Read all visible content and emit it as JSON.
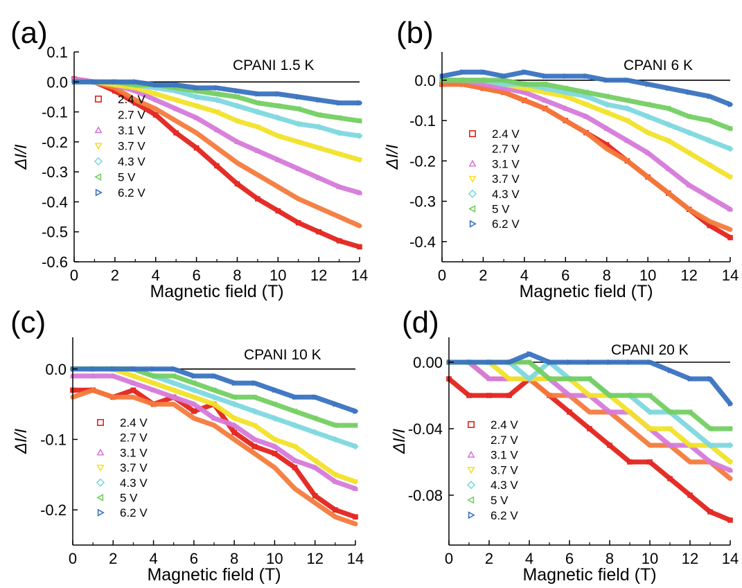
{
  "legend_labels": [
    "2.4 V",
    "2.7 V",
    "3.1 V",
    "3.7 V",
    "4.3 V",
    "5 V",
    "6.2 V"
  ],
  "series_colors": [
    "#e3231c",
    "#f47a3c",
    "#d67ad9",
    "#f2e12a",
    "#7ed8df",
    "#74cf62",
    "#3a73c0"
  ],
  "series_markers": [
    "square",
    "circle",
    "triangle-up",
    "triangle-down",
    "diamond",
    "triangle-left",
    "triangle-right"
  ],
  "chart_data": [
    {
      "type": "scatter",
      "panel_label": "(a)",
      "annotation": "CPANI  1.5 K",
      "xlabel": "Magnetic field (T)",
      "ylabel": "ΔI/I",
      "xlim": [
        0,
        14
      ],
      "ylim": [
        -0.6,
        0.1
      ],
      "xticks": [
        "0",
        "2",
        "4",
        "6",
        "8",
        "10",
        "12",
        "14"
      ],
      "yticks": [
        "-0.6",
        "-0.5",
        "-0.4",
        "-0.3",
        "-0.2",
        "-0.1",
        "0.0",
        "0.1"
      ],
      "legend_position": "left",
      "x": [
        0,
        1,
        2,
        3,
        4,
        5,
        6,
        7,
        8,
        9,
        10,
        11,
        12,
        13,
        14
      ],
      "series": [
        {
          "name": "2.4 V",
          "values": [
            0.01,
            0.0,
            -0.03,
            -0.07,
            -0.11,
            -0.17,
            -0.22,
            -0.28,
            -0.34,
            -0.39,
            -0.43,
            -0.47,
            -0.5,
            -0.53,
            -0.55
          ]
        },
        {
          "name": "2.7 V",
          "values": [
            0.01,
            0.0,
            -0.02,
            -0.06,
            -0.09,
            -0.13,
            -0.17,
            -0.22,
            -0.27,
            -0.31,
            -0.35,
            -0.39,
            -0.42,
            -0.45,
            -0.48
          ]
        },
        {
          "name": "3.1 V",
          "values": [
            0.01,
            0.0,
            -0.01,
            -0.03,
            -0.06,
            -0.09,
            -0.12,
            -0.16,
            -0.2,
            -0.23,
            -0.26,
            -0.29,
            -0.32,
            -0.35,
            -0.37
          ]
        },
        {
          "name": "3.7 V",
          "values": [
            0.0,
            0.0,
            -0.01,
            -0.02,
            -0.04,
            -0.06,
            -0.08,
            -0.1,
            -0.13,
            -0.15,
            -0.18,
            -0.2,
            -0.22,
            -0.24,
            -0.26
          ]
        },
        {
          "name": "4.3 V",
          "values": [
            0.0,
            0.0,
            0.0,
            -0.01,
            -0.02,
            -0.03,
            -0.05,
            -0.06,
            -0.08,
            -0.1,
            -0.12,
            -0.14,
            -0.15,
            -0.17,
            -0.18
          ]
        },
        {
          "name": "5 V",
          "values": [
            0.0,
            0.0,
            0.0,
            -0.01,
            -0.01,
            -0.02,
            -0.03,
            -0.04,
            -0.05,
            -0.07,
            -0.08,
            -0.09,
            -0.11,
            -0.12,
            -0.13
          ]
        },
        {
          "name": "6.2 V",
          "values": [
            0.0,
            0.0,
            0.0,
            0.0,
            -0.01,
            -0.01,
            -0.02,
            -0.02,
            -0.03,
            -0.04,
            -0.04,
            -0.05,
            -0.06,
            -0.07,
            -0.07
          ]
        }
      ]
    },
    {
      "type": "scatter",
      "panel_label": "(b)",
      "annotation": "CPANI   6 K",
      "xlabel": "Magnetic field (T)",
      "ylabel": "ΔI/I",
      "xlim": [
        0,
        14
      ],
      "ylim": [
        -0.45,
        0.07
      ],
      "xticks": [
        "0",
        "2",
        "4",
        "6",
        "8",
        "10",
        "12",
        "14"
      ],
      "yticks": [
        "-0.4",
        "-0.3",
        "-0.2",
        "-0.1",
        "0.0"
      ],
      "legend_position": "left",
      "x": [
        0,
        1,
        2,
        3,
        4,
        5,
        6,
        7,
        8,
        9,
        10,
        11,
        12,
        13,
        14
      ],
      "series": [
        {
          "name": "2.4 V",
          "values": [
            -0.01,
            -0.01,
            -0.02,
            -0.03,
            -0.05,
            -0.07,
            -0.1,
            -0.13,
            -0.16,
            -0.2,
            -0.24,
            -0.28,
            -0.32,
            -0.36,
            -0.39
          ]
        },
        {
          "name": "2.7 V",
          "values": [
            -0.01,
            -0.01,
            -0.02,
            -0.03,
            -0.05,
            -0.07,
            -0.1,
            -0.13,
            -0.17,
            -0.2,
            -0.24,
            -0.28,
            -0.32,
            -0.35,
            -0.37
          ]
        },
        {
          "name": "3.1 V",
          "values": [
            0.0,
            0.0,
            -0.01,
            -0.02,
            -0.03,
            -0.05,
            -0.07,
            -0.09,
            -0.12,
            -0.15,
            -0.18,
            -0.22,
            -0.26,
            -0.29,
            -0.32
          ]
        },
        {
          "name": "3.7 V",
          "values": [
            0.0,
            0.0,
            0.0,
            -0.01,
            -0.02,
            -0.03,
            -0.04,
            -0.06,
            -0.08,
            -0.1,
            -0.13,
            -0.15,
            -0.18,
            -0.21,
            -0.24
          ]
        },
        {
          "name": "4.3 V",
          "values": [
            0.0,
            0.0,
            0.0,
            -0.01,
            -0.01,
            -0.02,
            -0.03,
            -0.04,
            -0.06,
            -0.07,
            -0.09,
            -0.11,
            -0.13,
            -0.15,
            -0.17
          ]
        },
        {
          "name": "5 V",
          "values": [
            0.0,
            0.0,
            0.0,
            0.0,
            -0.01,
            -0.01,
            -0.02,
            -0.03,
            -0.04,
            -0.05,
            -0.06,
            -0.07,
            -0.09,
            -0.1,
            -0.12
          ]
        },
        {
          "name": "6.2 V",
          "values": [
            0.01,
            0.02,
            0.02,
            0.01,
            0.02,
            0.01,
            0.01,
            0.01,
            0.0,
            0.0,
            -0.01,
            -0.02,
            -0.03,
            -0.04,
            -0.06
          ]
        }
      ]
    },
    {
      "type": "scatter",
      "panel_label": "(c)",
      "annotation": "CPANI  10 K",
      "xlabel": "Magnetic field (T)",
      "ylabel": "ΔI/I",
      "xlim": [
        0,
        14
      ],
      "ylim": [
        -0.25,
        0.045
      ],
      "xticks": [
        "0",
        "2",
        "4",
        "6",
        "8",
        "10",
        "12",
        "14"
      ],
      "yticks": [
        "-0.2",
        "-0.1",
        "0.0"
      ],
      "legend_position": "left",
      "x": [
        0,
        1,
        2,
        3,
        4,
        5,
        6,
        7,
        8,
        9,
        10,
        11,
        12,
        13,
        14
      ],
      "series": [
        {
          "name": "2.4 V",
          "values": [
            -0.03,
            -0.03,
            -0.04,
            -0.03,
            -0.05,
            -0.04,
            -0.06,
            -0.05,
            -0.09,
            -0.11,
            -0.12,
            -0.14,
            -0.18,
            -0.2,
            -0.21
          ]
        },
        {
          "name": "2.7 V",
          "values": [
            -0.04,
            -0.03,
            -0.04,
            -0.04,
            -0.05,
            -0.05,
            -0.07,
            -0.08,
            -0.1,
            -0.12,
            -0.14,
            -0.17,
            -0.19,
            -0.21,
            -0.22
          ]
        },
        {
          "name": "3.1 V",
          "values": [
            -0.01,
            -0.01,
            -0.01,
            -0.02,
            -0.03,
            -0.04,
            -0.05,
            -0.07,
            -0.08,
            -0.1,
            -0.11,
            -0.13,
            -0.14,
            -0.16,
            -0.17
          ]
        },
        {
          "name": "3.7 V",
          "values": [
            0.0,
            0.0,
            0.0,
            -0.01,
            -0.02,
            -0.03,
            -0.04,
            -0.05,
            -0.07,
            -0.08,
            -0.1,
            -0.11,
            -0.13,
            -0.15,
            -0.16
          ]
        },
        {
          "name": "4.3 V",
          "values": [
            0.0,
            0.0,
            0.0,
            0.0,
            -0.01,
            -0.02,
            -0.03,
            -0.04,
            -0.05,
            -0.06,
            -0.07,
            -0.08,
            -0.09,
            -0.1,
            -0.11
          ]
        },
        {
          "name": "5 V",
          "values": [
            0.0,
            0.0,
            0.0,
            0.0,
            -0.01,
            -0.01,
            -0.02,
            -0.03,
            -0.04,
            -0.04,
            -0.05,
            -0.06,
            -0.07,
            -0.08,
            -0.08
          ]
        },
        {
          "name": "6.2 V",
          "values": [
            0.0,
            0.0,
            0.0,
            0.0,
            0.0,
            0.0,
            -0.01,
            -0.01,
            -0.02,
            -0.02,
            -0.03,
            -0.04,
            -0.04,
            -0.05,
            -0.06
          ]
        }
      ]
    },
    {
      "type": "scatter",
      "panel_label": "(d)",
      "annotation": "CPANI   20 K",
      "xlabel": "Magnetic field (T)",
      "ylabel": "ΔI/I",
      "xlim": [
        0,
        14
      ],
      "ylim": [
        -0.11,
        0.015
      ],
      "xticks": [
        "0",
        "2",
        "4",
        "6",
        "8",
        "10",
        "12",
        "14"
      ],
      "yticks": [
        "-0.08",
        "-0.04",
        "0.00"
      ],
      "legend_position": "left",
      "x": [
        0,
        1,
        2,
        3,
        4,
        5,
        6,
        7,
        8,
        9,
        10,
        11,
        12,
        13,
        14
      ],
      "series": [
        {
          "name": "2.4 V",
          "values": [
            -0.01,
            -0.02,
            -0.02,
            -0.02,
            -0.01,
            -0.02,
            -0.03,
            -0.04,
            -0.05,
            -0.06,
            -0.06,
            -0.07,
            -0.08,
            -0.09,
            -0.095
          ]
        },
        {
          "name": "2.7 V",
          "values": [
            0.0,
            0.0,
            -0.01,
            -0.01,
            -0.01,
            -0.02,
            -0.02,
            -0.03,
            -0.03,
            -0.04,
            -0.05,
            -0.05,
            -0.06,
            -0.06,
            -0.07
          ]
        },
        {
          "name": "3.1 V",
          "values": [
            0.0,
            0.0,
            -0.01,
            -0.01,
            -0.01,
            -0.01,
            -0.02,
            -0.02,
            -0.03,
            -0.03,
            -0.04,
            -0.05,
            -0.05,
            -0.06,
            -0.065
          ]
        },
        {
          "name": "3.7 V",
          "values": [
            0.0,
            0.0,
            0.0,
            -0.01,
            -0.01,
            -0.01,
            -0.01,
            -0.02,
            -0.02,
            -0.03,
            -0.04,
            -0.04,
            -0.05,
            -0.05,
            -0.06
          ]
        },
        {
          "name": "4.3 V",
          "values": [
            0.0,
            0.0,
            0.0,
            0.0,
            -0.01,
            0.0,
            -0.01,
            -0.01,
            -0.02,
            -0.02,
            -0.03,
            -0.03,
            -0.04,
            -0.05,
            -0.05
          ]
        },
        {
          "name": "5 V",
          "values": [
            0.0,
            0.0,
            0.0,
            0.0,
            0.0,
            -0.01,
            -0.01,
            -0.01,
            -0.02,
            -0.02,
            -0.02,
            -0.03,
            -0.03,
            -0.04,
            -0.04
          ]
        },
        {
          "name": "6.2 V",
          "values": [
            0.0,
            0.0,
            0.0,
            0.0,
            0.005,
            0.0,
            0.0,
            0.0,
            0.0,
            0.0,
            0.0,
            -0.005,
            -0.01,
            -0.01,
            -0.025
          ]
        }
      ]
    }
  ]
}
